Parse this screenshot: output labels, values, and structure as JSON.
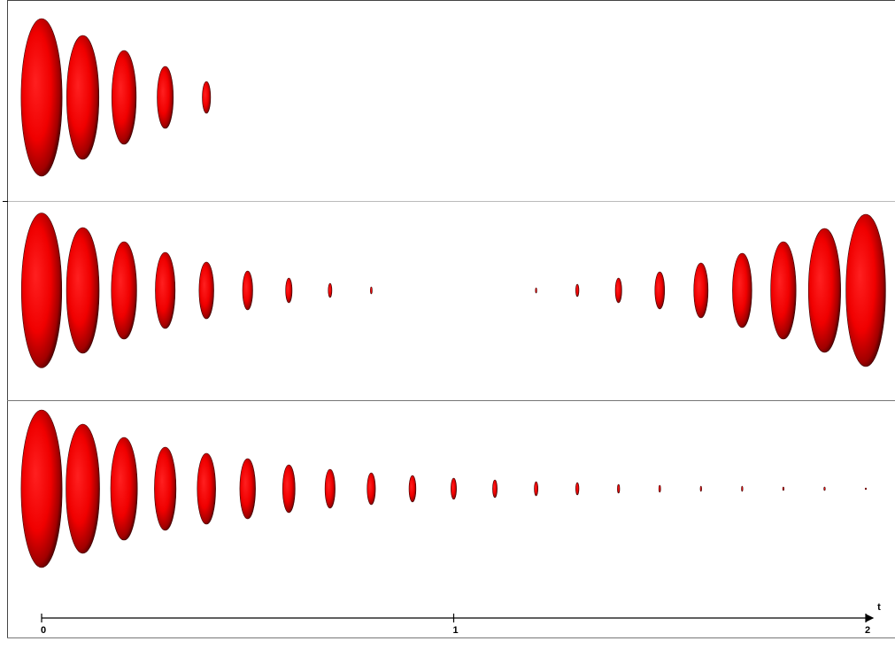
{
  "chart_data": [
    {
      "type": "ellipse",
      "color": "#ff0000",
      "xlim": [
        0,
        2
      ],
      "x": [
        0,
        0.1,
        0.2,
        0.3,
        0.4
      ],
      "values": [
        178,
        140,
        106,
        70,
        36
      ]
    },
    {
      "type": "ellipse",
      "color": "#ff0000",
      "xlim": [
        0,
        2
      ],
      "x": [
        0,
        0.1,
        0.2,
        0.3,
        0.4,
        0.5,
        0.6,
        0.7,
        0.8,
        1.2,
        1.3,
        1.4,
        1.5,
        1.6,
        1.7,
        1.8,
        1.9,
        2.0
      ],
      "values": [
        175,
        142,
        110,
        86,
        64,
        44,
        28,
        16,
        8,
        6,
        14,
        28,
        42,
        62,
        84,
        110,
        140,
        172
      ]
    },
    {
      "type": "ellipse",
      "color": "#ff0000",
      "xlim": [
        0,
        2
      ],
      "x_label": "t",
      "xticks": [
        0,
        1,
        2
      ],
      "x": [
        0,
        0.1,
        0.2,
        0.3,
        0.4,
        0.5,
        0.6,
        0.7,
        0.8,
        0.9,
        1.0,
        1.1,
        1.2,
        1.3,
        1.4,
        1.5,
        1.6,
        1.7,
        1.8,
        1.9,
        2.0
      ],
      "values": [
        178,
        146,
        116,
        94,
        80,
        68,
        54,
        44,
        36,
        30,
        24,
        20,
        16,
        14,
        10,
        8,
        6,
        6,
        4,
        4,
        2
      ]
    }
  ]
}
